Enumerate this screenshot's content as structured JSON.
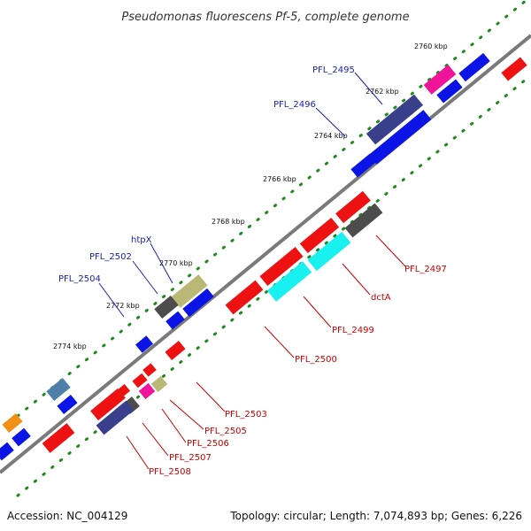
{
  "title": "Pseudomonas fluorescens Pf-5, complete genome",
  "footer": {
    "accession": "Accession: NC_004129",
    "topology": "Topology: circular; Length: 7,074,893 bp; Genes: 6,226"
  },
  "ticks": [
    "2760 kbp",
    "2762 kbp",
    "2764 kbp",
    "2766 kbp",
    "2768 kbp",
    "2770 kbp",
    "2772 kbp",
    "2774 kbp"
  ],
  "top_labels": [
    "PFL_2495",
    "PFL_2496",
    "htpX",
    "PFL_2502",
    "PFL_2504"
  ],
  "bottom_labels": [
    "PFL_2497",
    "dctA",
    "PFL_2499",
    "PFL_2500",
    "PFL_2503",
    "PFL_2505",
    "PFL_2506",
    "PFL_2507",
    "PFL_2508"
  ],
  "colors": {
    "blue": "#0a14e6",
    "red": "#ee1111",
    "navy": "#3a3f8c",
    "cyan": "#19f0f0",
    "pink": "#f0149a",
    "gray": "#4c4c4c",
    "olive": "#b9b877",
    "steel": "#4f7faa",
    "orange": "#f29016",
    "axis": "#7a7a7a",
    "tick_dot": "#1e8a1e",
    "label_blue": "#1a22b0",
    "label_red": "#cc0000"
  }
}
